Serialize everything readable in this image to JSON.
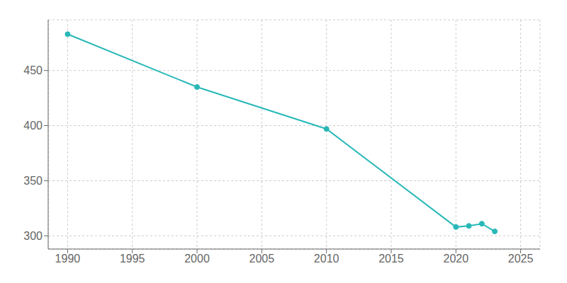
{
  "chart_data": {
    "type": "line",
    "x": [
      1990,
      2000,
      2010,
      2020,
      2021,
      2022,
      2023
    ],
    "values": [
      483,
      435,
      397,
      308,
      309,
      311,
      304
    ],
    "color": "#29b8b8",
    "marker": "circle",
    "xlim": [
      1988.5,
      2026.5
    ],
    "ylim": [
      288,
      496
    ],
    "xticks": [
      1990,
      1995,
      2000,
      2005,
      2010,
      2015,
      2020,
      2025
    ],
    "yticks": [
      300,
      350,
      400,
      450
    ],
    "grid": true
  }
}
